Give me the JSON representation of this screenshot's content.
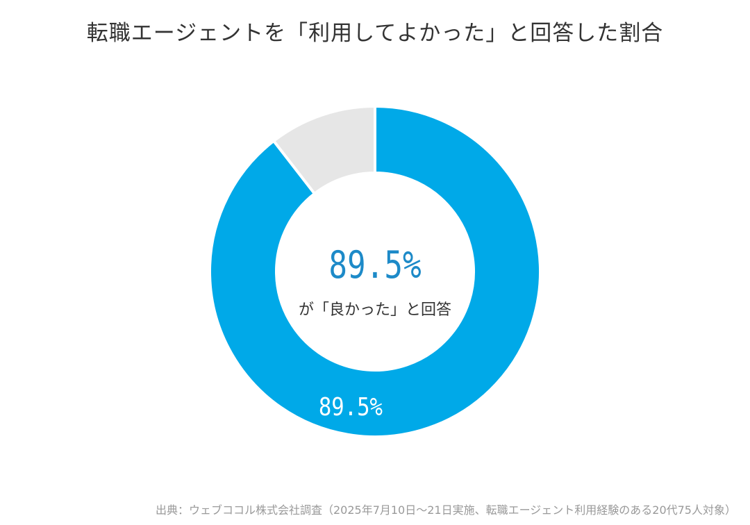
{
  "chart_data": {
    "type": "pie",
    "title": "転職エージェントを「利用してよかった」と回答した割合",
    "center_value": "89.5%",
    "center_caption": "が「良かった」と回答",
    "series": [
      {
        "value": 89.5,
        "label": "89.5%",
        "color": "#00a9e8"
      },
      {
        "value": 10.5,
        "color": "#e6e6e6"
      }
    ],
    "legend": "none"
  },
  "source": "出典：ウェブココル株式会社調査（2025年7月10日～21日実施、転職エージェント利用経験のある20代75人対象）"
}
